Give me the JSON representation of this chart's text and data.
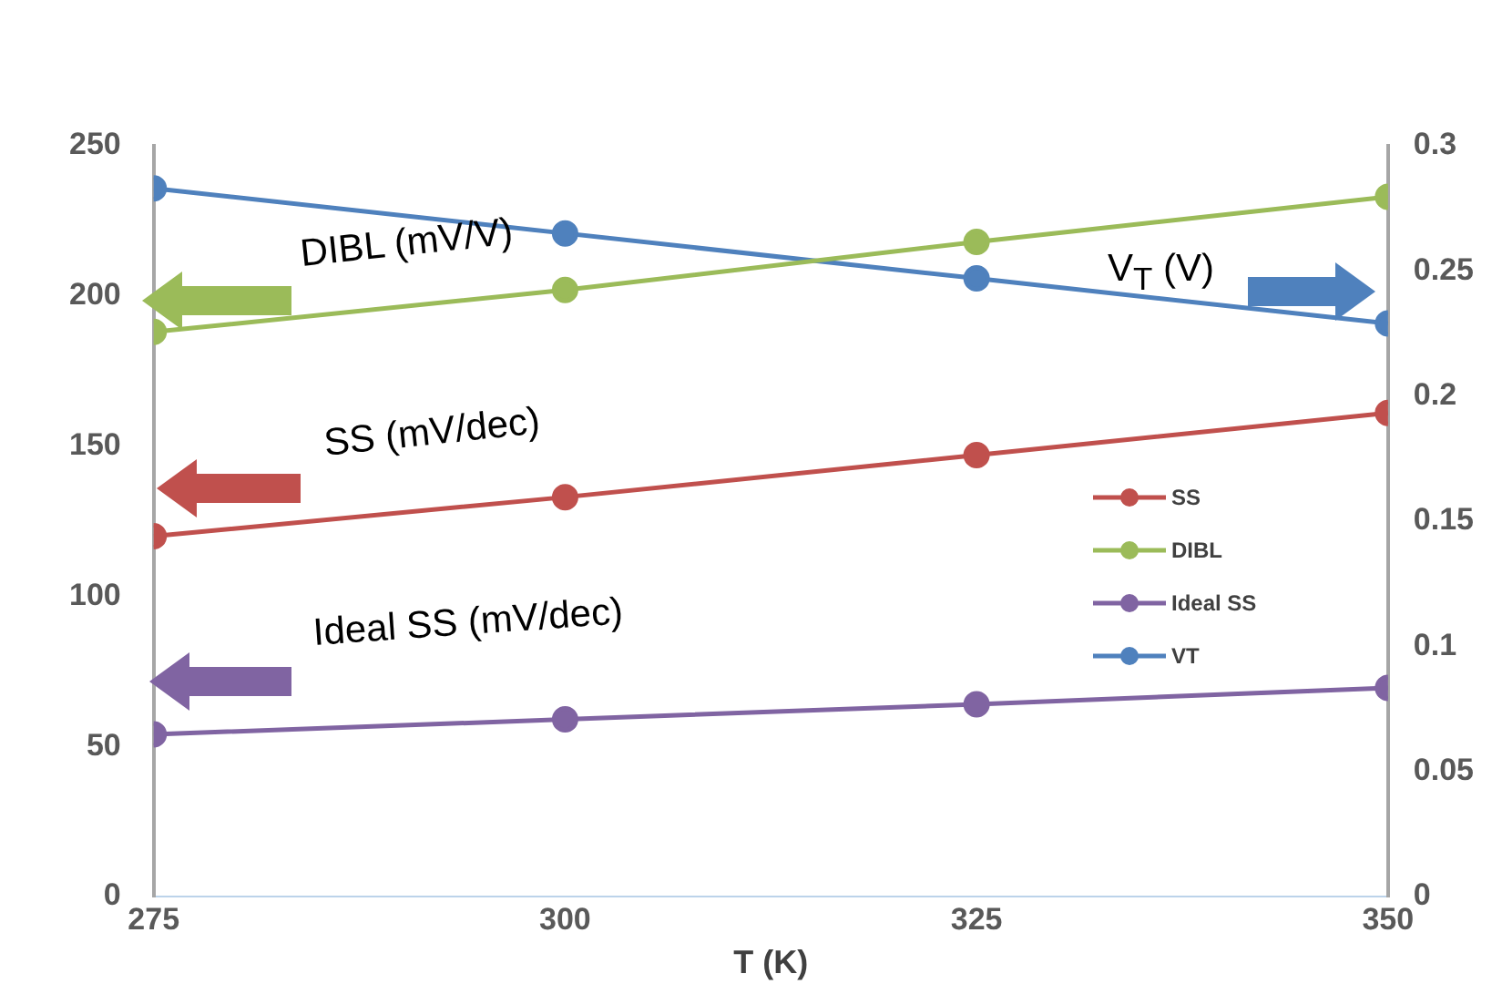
{
  "chart_data": {
    "type": "line",
    "xlabel": "T (K)",
    "x": [
      275,
      300,
      325,
      350
    ],
    "xlim": [
      275,
      350
    ],
    "xticks": [
      275,
      300,
      325,
      350
    ],
    "ylim": [
      0,
      250
    ],
    "yticks": [
      0,
      50,
      100,
      150,
      200,
      250
    ],
    "y2lim": [
      0,
      0.3
    ],
    "y2ticks": [
      0,
      0.05,
      0.1,
      0.15,
      0.2,
      0.25,
      0.3
    ],
    "grid": false,
    "legend": "right",
    "marker": "circle",
    "line_style": "solid",
    "series": [
      {
        "name": "SS",
        "color": "#c0504d",
        "values": [
          120,
          133,
          147,
          161
        ]
      },
      {
        "name": "DIBL",
        "color": "#9bbb59",
        "values": [
          188,
          202,
          218,
          233
        ]
      },
      {
        "name": "Ideal SS",
        "color": "#8064a2",
        "values": [
          54,
          59,
          64,
          69.5
        ]
      },
      {
        "name": "VT",
        "color": "#4f81bd",
        "axis": "y2",
        "values": [
          0.283,
          0.265,
          0.247,
          0.229
        ]
      }
    ],
    "annotations": [
      "DIBL (mV/V)",
      "SS (mV/dec)",
      "Ideal SS (mV/dec)",
      "V$_{T}$ (V)"
    ]
  }
}
